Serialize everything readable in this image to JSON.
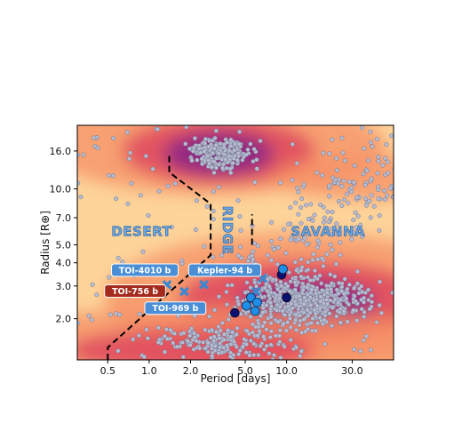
{
  "chart_data": {
    "type": "scatter",
    "xlabel": "Period [days]",
    "ylabel": "Radius [R⊕]",
    "xscale": "log",
    "yscale": "log",
    "xlim": [
      0.3,
      60
    ],
    "ylim": [
      1.2,
      22
    ],
    "xticks": [
      0.5,
      1.0,
      2.0,
      5.0,
      10.0,
      30.0
    ],
    "xtick_labels": [
      "0.5",
      "1.0",
      "2.0",
      "5.0",
      "10.0",
      "30.0"
    ],
    "yticks": [
      2.0,
      3.0,
      4.0,
      5.0,
      7.0,
      10.0,
      16.0
    ],
    "ytick_labels": [
      "2.0",
      "3.0",
      "4.0",
      "5.0",
      "7.0",
      "10.0",
      "16.0"
    ],
    "colors": {
      "background": "#fdd49a",
      "density_mid": "#f58f64",
      "density_high": "#d9335a",
      "density_peak": "#7a1f8c",
      "population_points": "#b8bcd0",
      "desert_boundary": "#000000",
      "region_text": "#6aa6e0",
      "tag_blue": "#4a8fd6",
      "tag_red": "#a42a1e",
      "marker_cross": "#3a88d0",
      "marker_red": "#8b1a1a",
      "marker_navy": "#0a1070",
      "marker_blue": "#1e8ee6"
    },
    "regions": [
      {
        "label": "DESERT",
        "x": 0.88,
        "y": 5.9
      },
      {
        "label": "RIDGE",
        "x": 3.7,
        "y": 6.0,
        "vertical": true
      },
      {
        "label": "SAVANNA",
        "x": 20.0,
        "y": 5.9
      }
    ],
    "desert_boundary": [
      {
        "x": 0.5,
        "y": 1.2
      },
      {
        "x": 0.5,
        "y": 1.4
      },
      {
        "x": 2.8,
        "y": 4.4
      },
      {
        "x": 2.8,
        "y": 8.3
      },
      {
        "x": 1.4,
        "y": 12.3
      },
      {
        "x": 1.4,
        "y": 15.6
      }
    ],
    "ridge_boundary": [
      {
        "x": 5.6,
        "y": 5.0
      },
      {
        "x": 5.6,
        "y": 7.3
      }
    ],
    "labeled_planets": [
      {
        "name": "TOI-4010 b",
        "x": 1.35,
        "y": 3.05,
        "marker": "cross",
        "tag_color": "blue",
        "tag_at": {
          "x": 0.93,
          "y": 3.65
        }
      },
      {
        "name": "Kepler-94 b",
        "x": 2.5,
        "y": 3.05,
        "marker": "cross",
        "tag_color": "blue",
        "tag_at": {
          "x": 3.55,
          "y": 3.65
        }
      },
      {
        "name": "TOI-756 b",
        "x": 1.24,
        "y": 2.8,
        "marker": "circle",
        "tag_color": "red",
        "tag_at": {
          "x": 0.79,
          "y": 2.82
        }
      },
      {
        "name": "TOI-969 b",
        "x": 2.3,
        "y": 2.3,
        "marker": "circle",
        "tag_color": "blue",
        "tag_at": {
          "x": 1.55,
          "y": 2.28
        }
      }
    ],
    "cross_markers": [
      {
        "x": 1.35,
        "y": 3.05
      },
      {
        "x": 1.8,
        "y": 2.8
      },
      {
        "x": 2.5,
        "y": 3.05
      },
      {
        "x": 6.0,
        "y": 2.8
      },
      {
        "x": 6.7,
        "y": 3.3
      }
    ],
    "navy_markers": [
      {
        "x": 4.2,
        "y": 2.15
      },
      {
        "x": 9.2,
        "y": 3.45
      },
      {
        "x": 10.0,
        "y": 2.6
      }
    ],
    "blue_markers": [
      {
        "x": 5.1,
        "y": 2.35
      },
      {
        "x": 5.5,
        "y": 2.6
      },
      {
        "x": 5.9,
        "y": 2.2
      },
      {
        "x": 6.1,
        "y": 2.45
      },
      {
        "x": 9.4,
        "y": 3.7
      }
    ],
    "red_markers": [
      {
        "x": 1.24,
        "y": 2.8
      }
    ],
    "density_blobs": [
      {
        "x": 3.0,
        "y": 17.0,
        "rx": 1.25,
        "ry": 0.26,
        "level": 1
      },
      {
        "x": 3.2,
        "y": 16.0,
        "rx": 0.7,
        "ry": 0.18,
        "level": 2
      },
      {
        "x": 3.2,
        "y": 15.5,
        "rx": 0.4,
        "ry": 0.12,
        "level": 3
      },
      {
        "x": 40.0,
        "y": 11.5,
        "rx": 0.7,
        "ry": 0.12,
        "level": 1
      },
      {
        "x": 12.0,
        "y": 2.6,
        "rx": 1.4,
        "ry": 0.35,
        "level": 1
      },
      {
        "x": 13.0,
        "y": 2.5,
        "rx": 0.9,
        "ry": 0.22,
        "level": 2
      },
      {
        "x": 14.0,
        "y": 2.4,
        "rx": 0.5,
        "ry": 0.13,
        "level": 3
      },
      {
        "x": 3.0,
        "y": 1.45,
        "rx": 1.9,
        "ry": 0.2,
        "level": 1
      },
      {
        "x": 2.0,
        "y": 1.35,
        "rx": 0.9,
        "ry": 0.12,
        "level": 2
      }
    ]
  }
}
